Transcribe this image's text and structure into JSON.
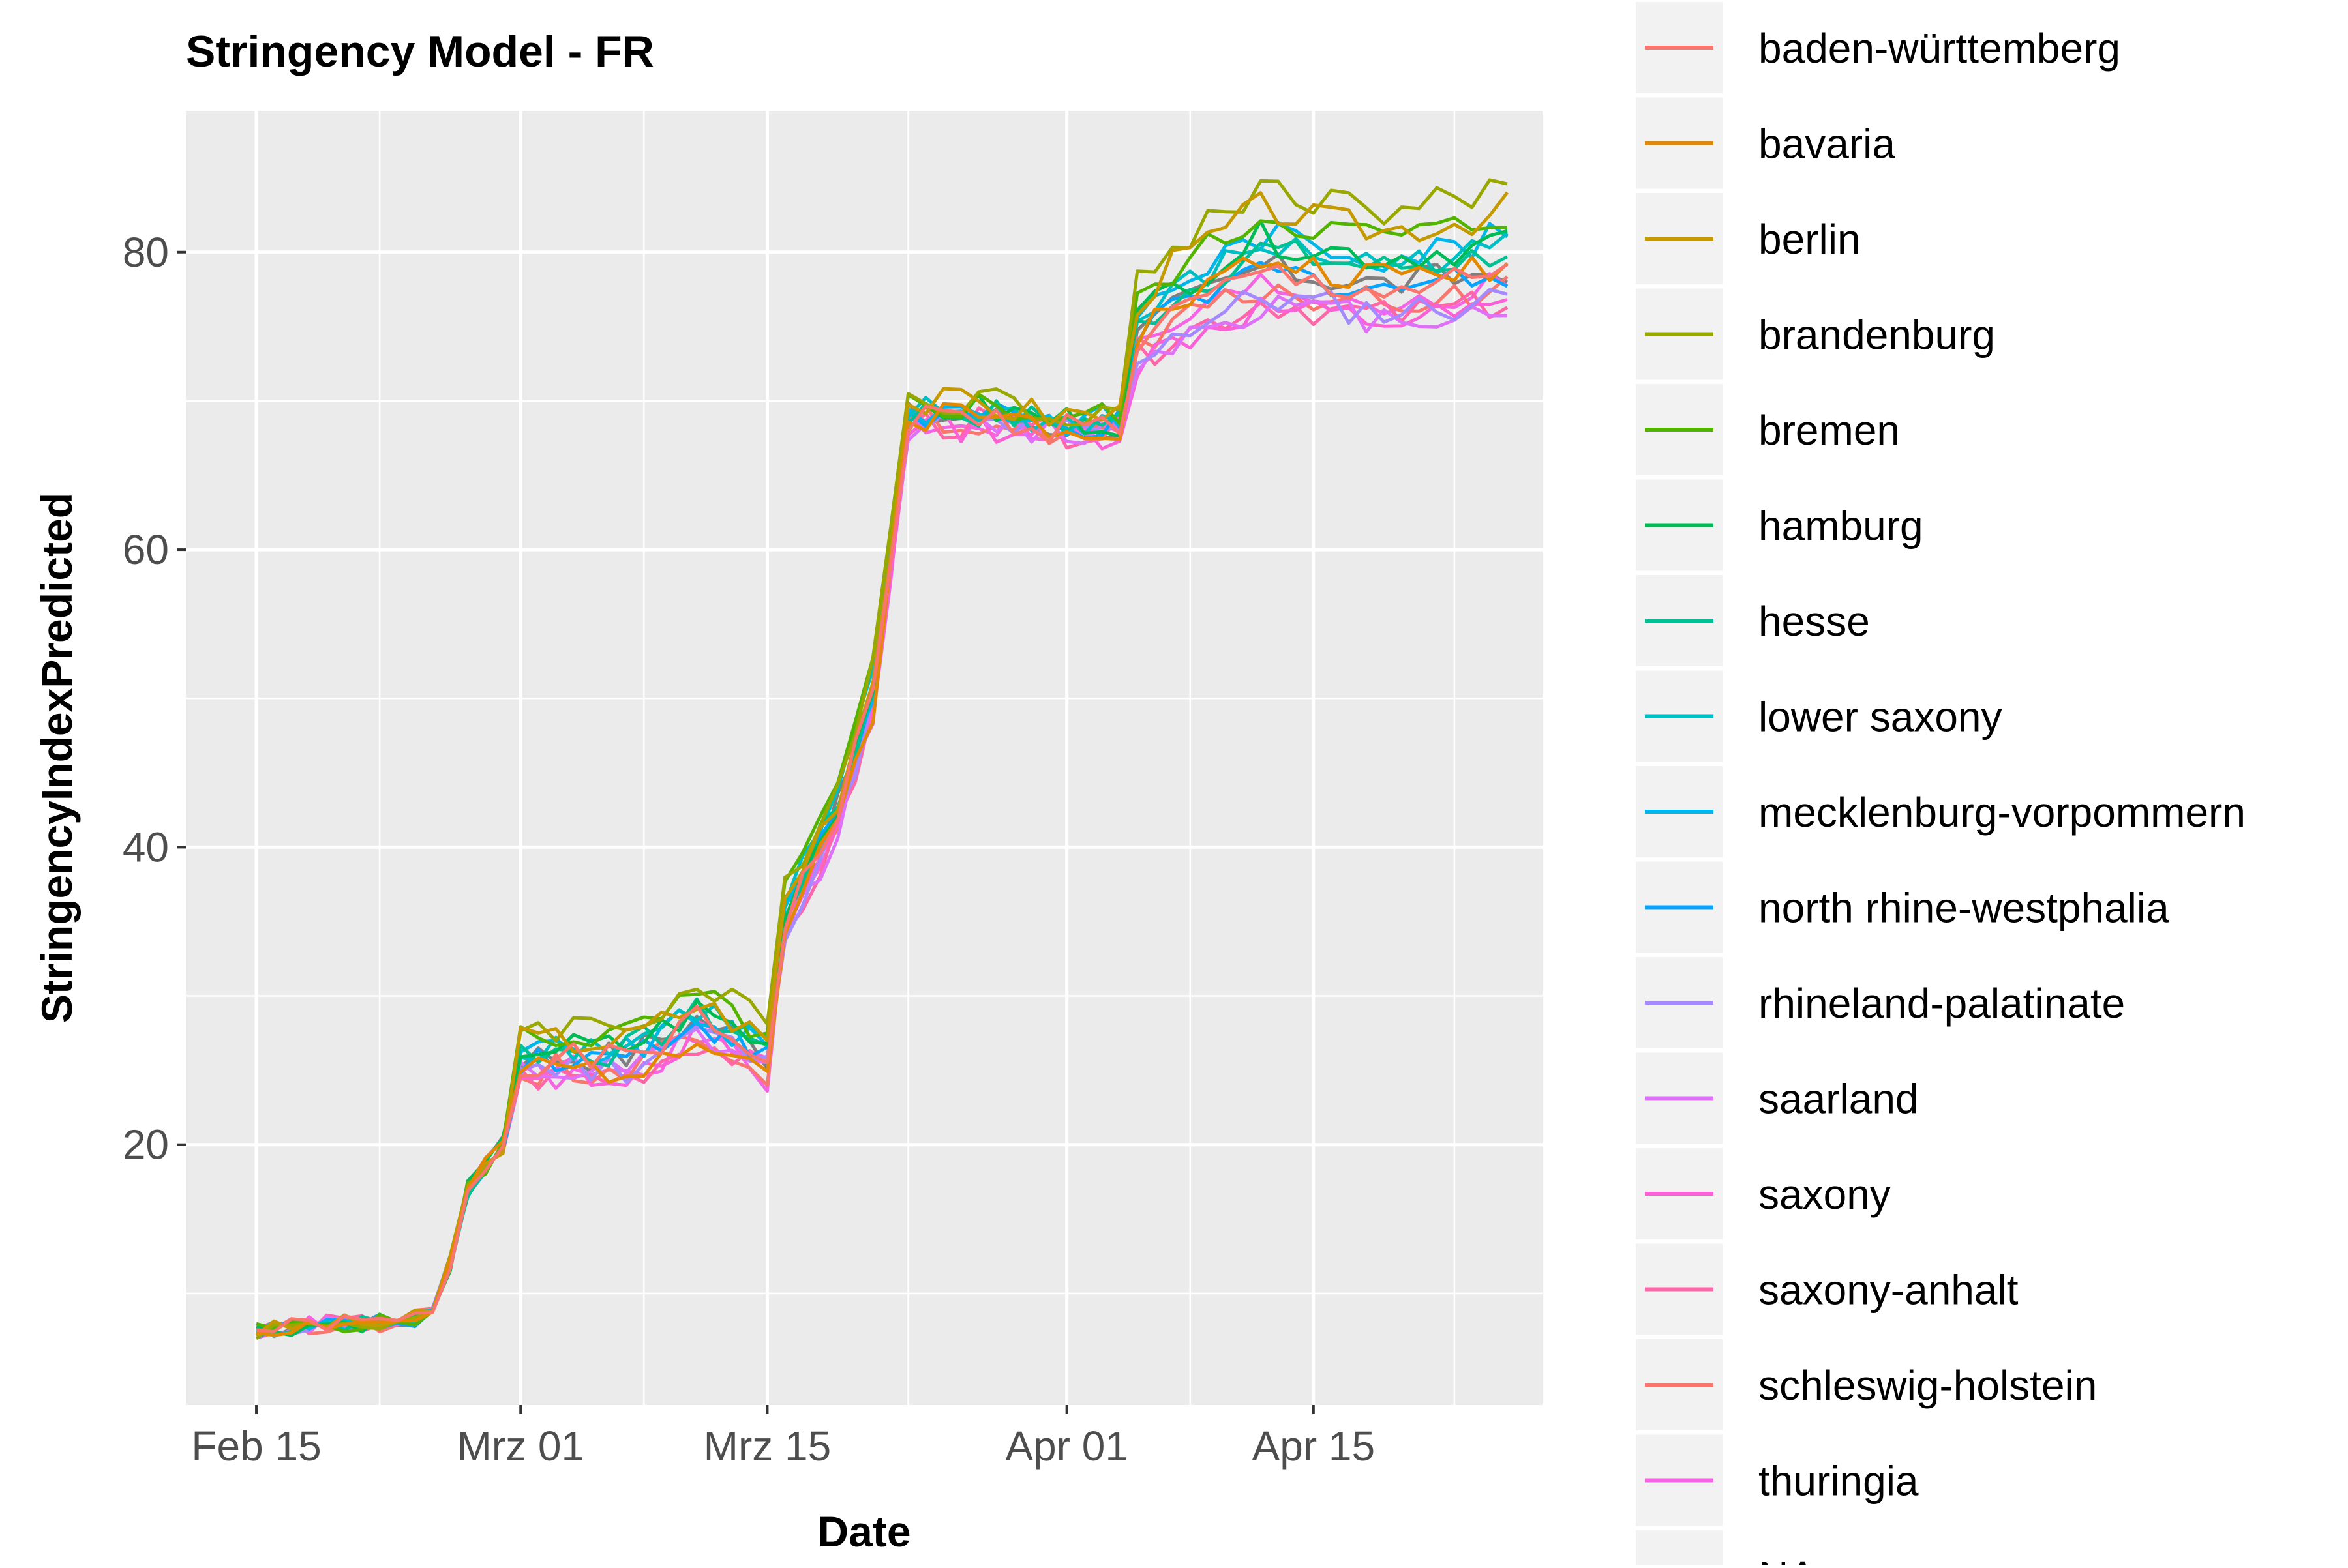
{
  "chart_data": {
    "type": "line",
    "title": "Stringency Model - FR",
    "xlabel": "Date",
    "ylabel": "StringencyIndexPredicted",
    "x_ticks": [
      {
        "date": "2020-02-15",
        "label": "Feb 15"
      },
      {
        "date": "2020-03-01",
        "label": "Mrz 01"
      },
      {
        "date": "2020-03-15",
        "label": "Mrz 15"
      },
      {
        "date": "2020-04-01",
        "label": "Apr 01"
      },
      {
        "date": "2020-04-15",
        "label": "Apr 15"
      }
    ],
    "x_minor_dates": [
      "2020-02-22",
      "2020-03-08",
      "2020-03-23",
      "2020-04-08",
      "2020-04-23"
    ],
    "xlim": [
      "2020-02-11",
      "2020-04-28"
    ],
    "ylim": [
      2.5,
      89.5
    ],
    "y_ticks": [
      20,
      40,
      60,
      80
    ],
    "y_minor": [
      10,
      30,
      50,
      70
    ],
    "grid": true,
    "legend_position": "right",
    "colors": {
      "panel_background": "#ebebeb",
      "grid_line": "#ffffff",
      "legend_key_background": "#f2f2f2",
      "axis_text": "#4d4d4d",
      "title_text": "#000000"
    },
    "base_series": {
      "dates": [
        "2020-02-15",
        "2020-02-19",
        "2020-02-22",
        "2020-02-25",
        "2020-02-26",
        "2020-02-27",
        "2020-02-29",
        "2020-03-01",
        "2020-03-07",
        "2020-03-11",
        "2020-03-13",
        "2020-03-15",
        "2020-03-16",
        "2020-03-19",
        "2020-03-21",
        "2020-03-23",
        "2020-03-27",
        "2020-03-31",
        "2020-04-04",
        "2020-04-05",
        "2020-04-07",
        "2020-04-09",
        "2020-04-12",
        "2020-04-15",
        "2020-04-19",
        "2020-04-24",
        "2020-04-26"
      ],
      "values": [
        7.5,
        8.0,
        8.0,
        8.5,
        12,
        17,
        20,
        25.5,
        25.5,
        28,
        27,
        25.5,
        35,
        42,
        50,
        68.5,
        68.5,
        68,
        68,
        73,
        74.5,
        75.5,
        77,
        76.5,
        76,
        76.5,
        77
      ]
    },
    "series": [
      {
        "name": "baden-württemberg",
        "color": "#F8766D",
        "late_offset": 1.5,
        "mid_offset": 0.2,
        "seed": 1
      },
      {
        "name": "bavaria",
        "color": "#E38900",
        "late_offset": 2.5,
        "mid_offset": -0.5,
        "seed": 2
      },
      {
        "name": "berlin",
        "color": "#C49A00",
        "late_offset": 6.0,
        "mid_offset": 1.5,
        "seed": 3
      },
      {
        "name": "brandenburg",
        "color": "#99A800",
        "late_offset": 7.5,
        "mid_offset": 2.5,
        "seed": 4
      },
      {
        "name": "bremen",
        "color": "#53B400",
        "late_offset": 5.5,
        "mid_offset": 1.8,
        "seed": 5
      },
      {
        "name": "hamburg",
        "color": "#00BC56",
        "late_offset": 4.0,
        "mid_offset": 1.0,
        "seed": 6
      },
      {
        "name": "hesse",
        "color": "#00C094",
        "late_offset": 3.2,
        "mid_offset": 0.8,
        "seed": 7
      },
      {
        "name": "lower saxony",
        "color": "#00BFC4",
        "late_offset": 3.5,
        "mid_offset": 1.2,
        "seed": 8
      },
      {
        "name": "mecklenburg-vorpommern",
        "color": "#00B6EB",
        "late_offset": 4.2,
        "mid_offset": 0.6,
        "seed": 9
      },
      {
        "name": "north rhine-westphalia",
        "color": "#06A4FF",
        "late_offset": 1.8,
        "mid_offset": 0.4,
        "seed": 10
      },
      {
        "name": "rhineland-palatinate",
        "color": "#A58AFF",
        "late_offset": 0.0,
        "mid_offset": -0.3,
        "seed": 11
      },
      {
        "name": "saarland",
        "color": "#DF70F8",
        "late_offset": -0.5,
        "mid_offset": -0.8,
        "seed": 12
      },
      {
        "name": "saxony",
        "color": "#FB61D7",
        "late_offset": -0.7,
        "mid_offset": -0.6,
        "seed": 13
      },
      {
        "name": "saxony-anhalt",
        "color": "#FF66A8",
        "late_offset": -0.3,
        "mid_offset": -1.0,
        "seed": 14
      },
      {
        "name": "schleswig-holstein",
        "color": "#F8766D",
        "late_offset": 0.5,
        "mid_offset": -0.4,
        "seed": 15
      },
      {
        "name": "thuringia",
        "color": "#F564E3",
        "late_offset": 0.8,
        "mid_offset": -0.9,
        "seed": 16
      },
      {
        "name": "NA",
        "color": "#7F7F7F",
        "late_offset": 2.0,
        "mid_offset": 0.5,
        "seed": 17
      }
    ]
  }
}
